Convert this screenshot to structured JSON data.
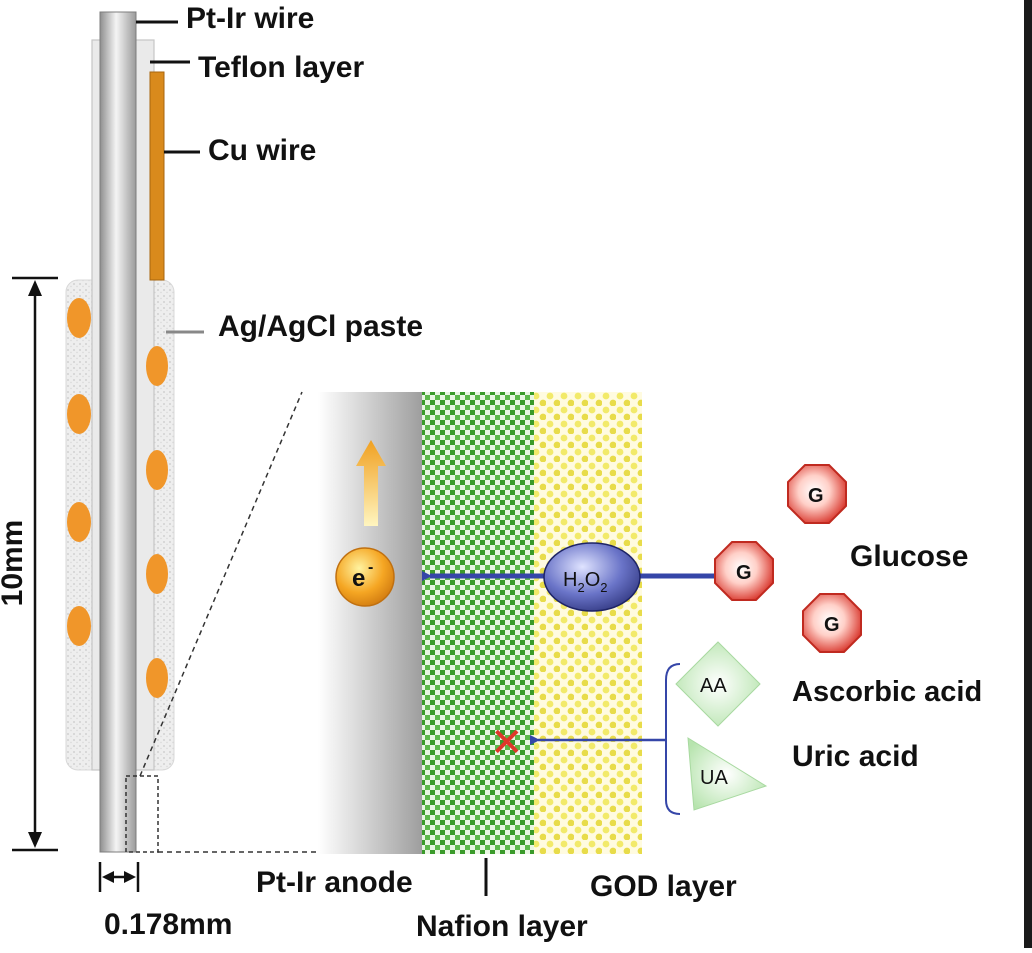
{
  "labels": {
    "pt_ir_wire": "Pt-Ir wire",
    "teflon_layer": "Teflon layer",
    "cu_wire": "Cu wire",
    "ag_agcl_paste": "Ag/AgCl paste",
    "length": "10mm",
    "diameter": "0.178mm",
    "pt_ir_anode": "Pt-Ir anode",
    "nafion_layer": "Nafion layer",
    "god_layer": "GOD layer",
    "glucose": "Glucose",
    "ascorbic_acid": "Ascorbic acid",
    "uric_acid": "Uric acid"
  },
  "species": {
    "electron": "e",
    "electron_charge": "-",
    "h2o2_h": "H",
    "h2o2_2a": "2",
    "h2o2_o": "O",
    "h2o2_2b": "2",
    "glucose_symbol": "G",
    "aa": "AA",
    "ua": "UA",
    "blocked": "✕"
  },
  "colors": {
    "silver": "#c8c8c8",
    "copper": "#d98a1c",
    "orange_dot": "#f0962a",
    "nafion_green": "#3a9a2a",
    "god_yellow": "#f2ea6a",
    "arrow_blue": "#3546a8",
    "glucose_red": "#d8342a",
    "aa_ua_green": "#c9ecc2"
  }
}
